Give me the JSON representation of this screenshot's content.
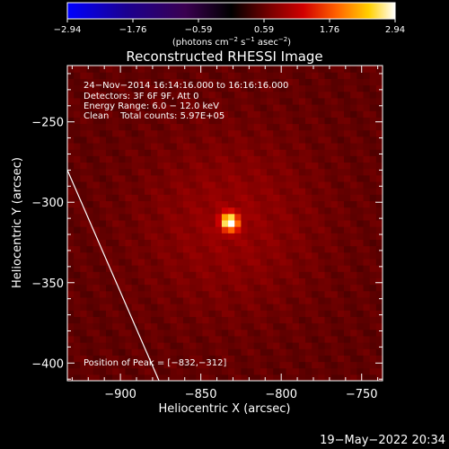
{
  "chart_data": {
    "type": "heatmap",
    "title": "Reconstructed RHESSI Image",
    "xlabel": "Heliocentric X (arcsec)",
    "ylabel": "Heliocentric Y (arcsec)",
    "xlim": [
      -933,
      -737
    ],
    "ylim": [
      -411,
      -215
    ],
    "x_ticks": [
      -900,
      -850,
      -800,
      -750
    ],
    "y_ticks": [
      -250,
      -300,
      -350,
      -400
    ],
    "x_tick_labels": [
      "−900",
      "−850",
      "−800",
      "−750"
    ],
    "y_tick_labels": [
      "−250",
      "−300",
      "−350",
      "−400"
    ],
    "colorbar": {
      "min": -2.94,
      "max": 2.94,
      "tick_labels": [
        "−2.94",
        "−1.76",
        "−0.59",
        "0.59",
        "1.76",
        "2.94"
      ],
      "unit_base": "(photons cm",
      "unit_exp1": "−2",
      "unit_mid1": " s",
      "unit_exp2": "−1",
      "unit_mid2": " asec",
      "unit_exp3": "−2",
      "unit_end": ")"
    },
    "source_peak": {
      "x": -832,
      "y": -312,
      "peak_value": 2.94,
      "fwhm_arcsec": 9
    },
    "background_value": 0.55,
    "limb_line": [
      [
        -933,
        -280
      ],
      [
        -876,
        -411
      ]
    ],
    "annotations": [
      "24−Nov−2014 16:14:16.000 to 16:16:16.000",
      "Detectors: 3F 6F 9F, Att 0",
      "Energy Range: 6.0 − 12.0 keV",
      "Clean    Total counts: 5.97E+05"
    ],
    "peak_label": "Position of Peak = [−832,−312]"
  },
  "footer": {
    "timestamp": "19−May−2022 20:34"
  }
}
